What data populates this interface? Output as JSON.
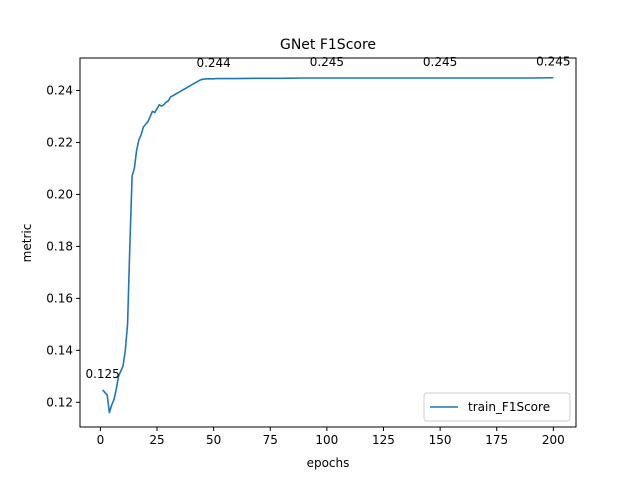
{
  "chart_data": {
    "type": "line",
    "title": "GNet F1Score",
    "xlabel": "epochs",
    "ylabel": "metric",
    "xlim": [
      -9,
      210
    ],
    "ylim": [
      0.1105,
      0.2525
    ],
    "xticks": [
      0,
      25,
      50,
      75,
      100,
      125,
      150,
      175,
      200
    ],
    "yticks": [
      0.12,
      0.14,
      0.16,
      0.18,
      0.2,
      0.22,
      0.24
    ],
    "ytick_labels": [
      "0.12",
      "0.14",
      "0.16",
      "0.18",
      "0.20",
      "0.22",
      "0.24"
    ],
    "grid": false,
    "legend_position": "lower-right",
    "series": [
      {
        "name": "train_F1Score",
        "color": "#1f77b4",
        "x": [
          1,
          2,
          3,
          4,
          5,
          6,
          7,
          8,
          9,
          10,
          11,
          12,
          13,
          14,
          15,
          16,
          17,
          18,
          19,
          20,
          21,
          22,
          23,
          24,
          25,
          26,
          27,
          28,
          29,
          30,
          31,
          32,
          33,
          34,
          35,
          36,
          37,
          38,
          39,
          40,
          41,
          42,
          43,
          44,
          45,
          46,
          47,
          48,
          49,
          50,
          51,
          52,
          55,
          60,
          70,
          80,
          90,
          100,
          110,
          120,
          130,
          140,
          150,
          160,
          170,
          180,
          190,
          200
        ],
        "y": [
          0.1248,
          0.1238,
          0.1228,
          0.116,
          0.119,
          0.121,
          0.125,
          0.13,
          0.132,
          0.134,
          0.14,
          0.15,
          0.18,
          0.207,
          0.21,
          0.217,
          0.221,
          0.223,
          0.226,
          0.227,
          0.228,
          0.23,
          0.232,
          0.2315,
          0.233,
          0.2345,
          0.234,
          0.2345,
          0.2355,
          0.236,
          0.2375,
          0.238,
          0.2385,
          0.239,
          0.2395,
          0.24,
          0.2405,
          0.241,
          0.2415,
          0.242,
          0.2425,
          0.243,
          0.2435,
          0.244,
          0.2443,
          0.2444,
          0.2445,
          0.2445,
          0.2445,
          0.2445,
          0.2446,
          0.2446,
          0.2446,
          0.2446,
          0.2447,
          0.2447,
          0.2448,
          0.2448,
          0.2448,
          0.2448,
          0.2448,
          0.2448,
          0.2448,
          0.2448,
          0.2448,
          0.2448,
          0.2448,
          0.2449
        ]
      }
    ],
    "annotations": [
      {
        "text": "0.125",
        "x": 1,
        "y": 0.1248
      },
      {
        "text": "0.244",
        "x": 50,
        "y": 0.2445
      },
      {
        "text": "0.245",
        "x": 100,
        "y": 0.2448
      },
      {
        "text": "0.245",
        "x": 150,
        "y": 0.2448
      },
      {
        "text": "0.245",
        "x": 200,
        "y": 0.2449
      }
    ]
  }
}
